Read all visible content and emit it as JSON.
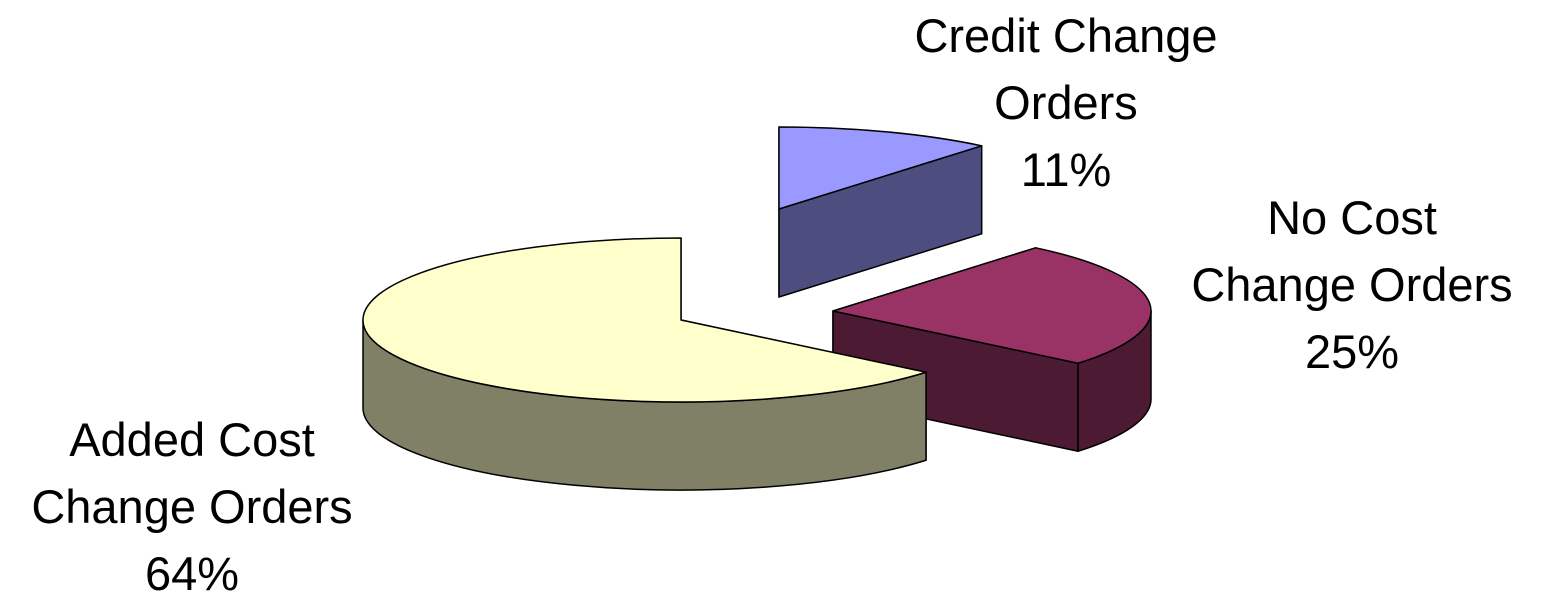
{
  "chart_data": {
    "type": "pie",
    "style": "3d-exploded",
    "title": "",
    "slices": [
      {
        "label_lines": [
          "Credit Change",
          "Orders"
        ],
        "value": 11,
        "percent_label": "11%",
        "top_color": "#9999ff",
        "side_color": "#4d4d80"
      },
      {
        "label_lines": [
          "No Cost",
          "Change Orders"
        ],
        "value": 25,
        "percent_label": "25%",
        "top_color": "#993366",
        "side_color": "#4d1a33"
      },
      {
        "label_lines": [
          "Added Cost",
          "Change Orders"
        ],
        "value": 64,
        "percent_label": "64%",
        "top_color": "#ffffcc",
        "side_color": "#808066"
      }
    ],
    "legend": "none"
  }
}
